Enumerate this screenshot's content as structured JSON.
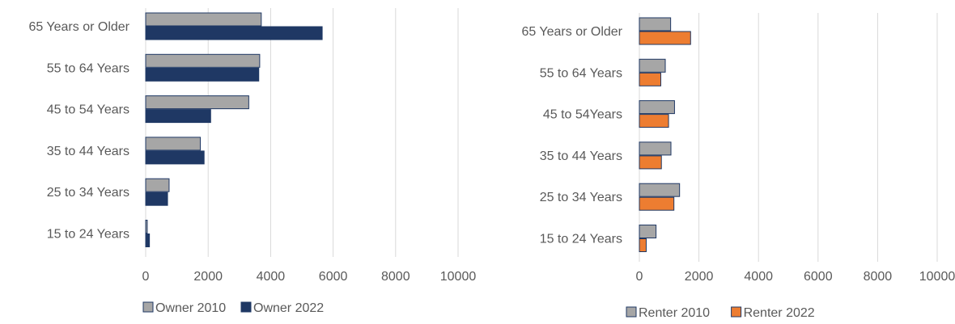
{
  "chart_data": [
    {
      "type": "bar",
      "orientation": "horizontal",
      "categories": [
        "65 Years or Older",
        "55 to 64 Years",
        "45 to 54 Years",
        "35 to 44 Years",
        "25 to 34 Years",
        "15 to 24 Years"
      ],
      "series": [
        {
          "name": "Owner 2010",
          "color": "#A6A6A6",
          "values": [
            3700,
            3650,
            3300,
            1750,
            750,
            50
          ]
        },
        {
          "name": "Owner 2022",
          "color": "#1F3864",
          "values": [
            5650,
            3620,
            2080,
            1870,
            700,
            120
          ]
        }
      ],
      "xlim": [
        0,
        10000
      ],
      "xticks": [
        "0",
        "2000",
        "4000",
        "6000",
        "8000",
        "10000"
      ],
      "grid": true,
      "legend": "bottom"
    },
    {
      "type": "bar",
      "orientation": "horizontal",
      "categories": [
        "65 Years or Older",
        "55 to 64 Years",
        "45 to 54Years",
        "35 to 44 Years",
        "25 to 34 Years",
        "15 to 24 Years"
      ],
      "series": [
        {
          "name": "Renter 2010",
          "color": "#A6A6A6",
          "values": [
            1050,
            870,
            1180,
            1060,
            1350,
            560
          ]
        },
        {
          "name": "Renter 2022",
          "color": "#ED7D31",
          "values": [
            1720,
            720,
            980,
            740,
            1160,
            230
          ]
        }
      ],
      "xlim": [
        0,
        10000
      ],
      "xticks": [
        "0",
        "2000",
        "4000",
        "6000",
        "8000",
        "10000"
      ],
      "grid": true,
      "legend": "bottom"
    }
  ]
}
